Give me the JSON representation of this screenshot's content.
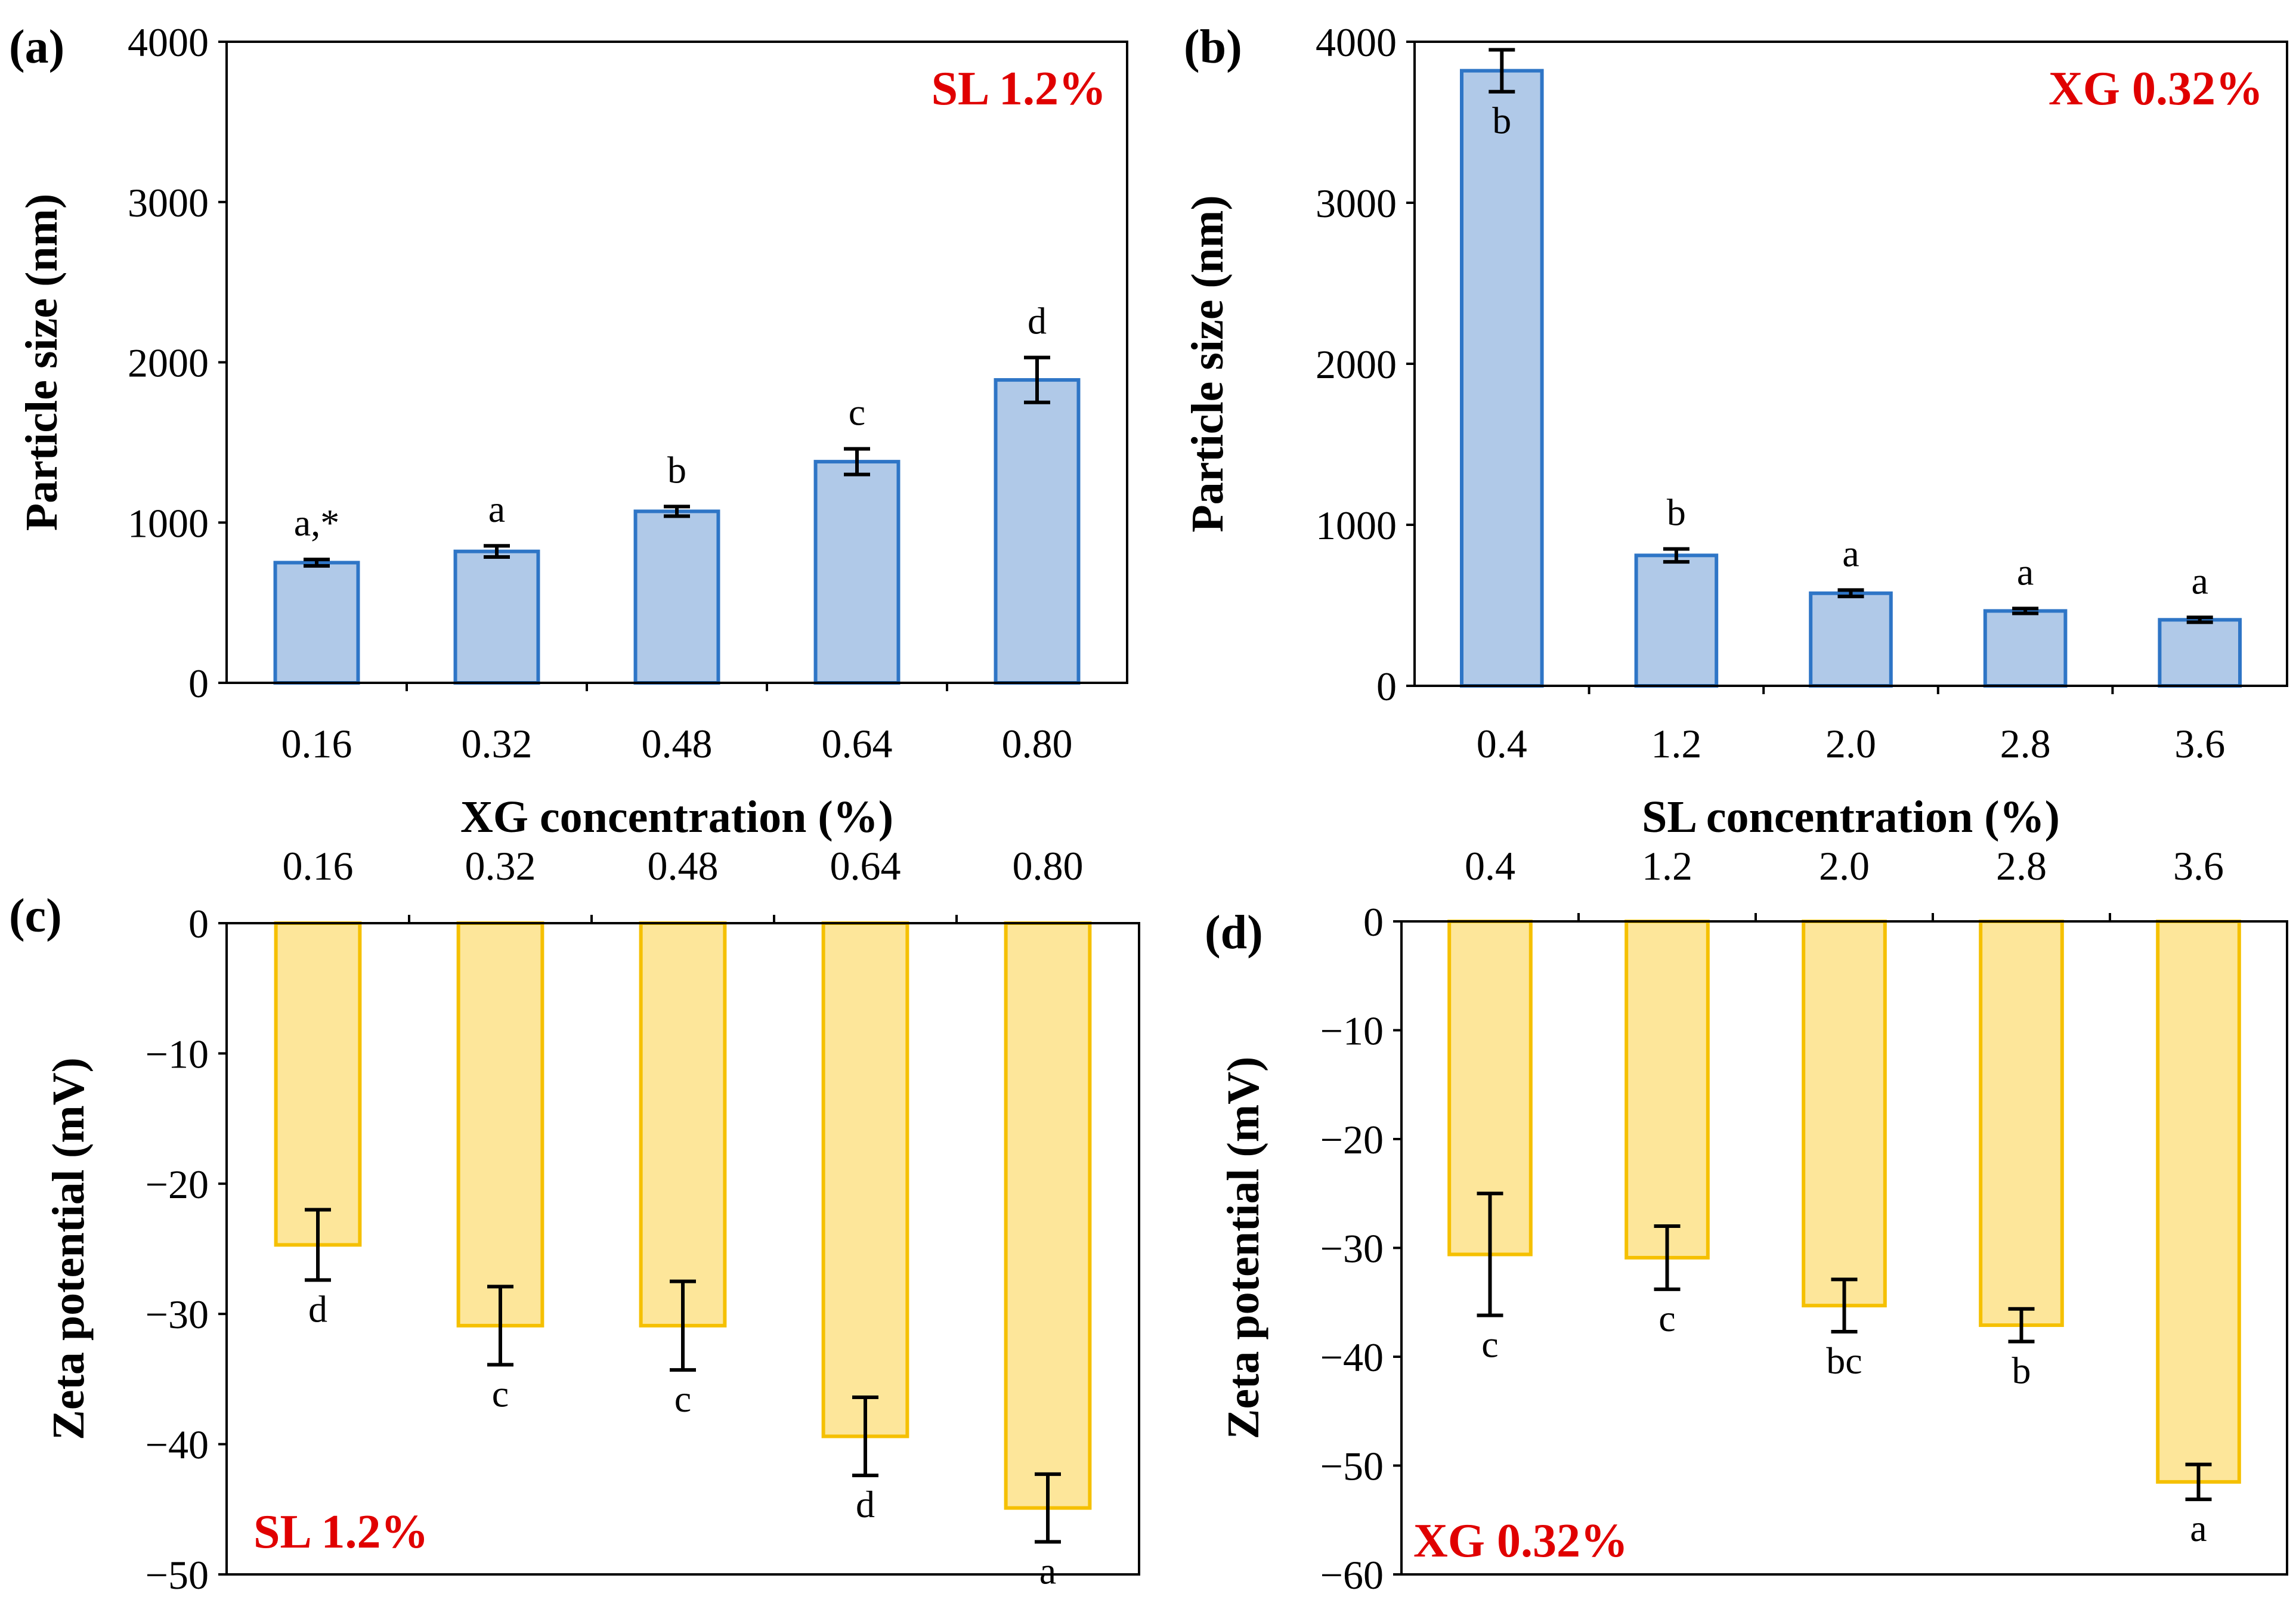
{
  "colors": {
    "size_fill": "#b0c9e8",
    "size_stroke": "#2e75c6",
    "zeta_fill": "#fde69a",
    "zeta_stroke": "#f5c000",
    "note": "#e00000"
  },
  "chart_data": [
    {
      "panel": "(a)",
      "type": "bar",
      "title": "",
      "note": "SL 1.2%",
      "xlabel": "XG concentration (%)",
      "ylabel": "Particle size (nm)",
      "categories": [
        "0.16",
        "0.32",
        "0.48",
        "0.64",
        "0.80"
      ],
      "values": [
        750,
        820,
        1070,
        1380,
        1890
      ],
      "errors": [
        20,
        35,
        30,
        80,
        140
      ],
      "letters": [
        "a,*",
        "a",
        "b",
        "c",
        "d"
      ],
      "ylim": [
        0,
        4000
      ],
      "yticks": [
        "0",
        "1000",
        "2000",
        "3000",
        "4000"
      ],
      "axis_position": "bottom"
    },
    {
      "panel": "(b)",
      "type": "bar",
      "title": "",
      "note": "XG 0.32%",
      "xlabel": "SL concentration (%)",
      "ylabel": "Particle size (nm)",
      "categories": [
        "0.4",
        "1.2",
        "2.0",
        "2.8",
        "3.6"
      ],
      "values": [
        3820,
        810,
        575,
        465,
        410
      ],
      "errors": [
        130,
        40,
        20,
        15,
        15
      ],
      "letters": [
        "b",
        "b",
        "a",
        "a",
        "a"
      ],
      "ylim": [
        0,
        4000
      ],
      "yticks": [
        "0",
        "1000",
        "2000",
        "3000",
        "4000"
      ],
      "axis_position": "bottom"
    },
    {
      "panel": "(c)",
      "type": "bar",
      "title": "",
      "note": "SL 1.2%",
      "xlabel": "",
      "ylabel": "Zeta potential (mV)",
      "categories": [
        "0.16",
        "0.32",
        "0.48",
        "0.64",
        "0.80"
      ],
      "values": [
        -24.7,
        -30.9,
        -30.9,
        -39.4,
        -44.9
      ],
      "errors": [
        2.7,
        3.0,
        3.4,
        3.0,
        2.6
      ],
      "letters": [
        "d",
        "c",
        "c",
        "d",
        "a"
      ],
      "ylim": [
        -50,
        0
      ],
      "yticks": [
        "0",
        "−10",
        "−20",
        "−30",
        "−40",
        "−50"
      ],
      "axis_position": "top"
    },
    {
      "panel": "(d)",
      "type": "bar",
      "title": "",
      "note": "XG 0.32%",
      "xlabel": "",
      "ylabel": "Zeta potential (mV)",
      "categories": [
        "0.4",
        "1.2",
        "2.0",
        "2.8",
        "3.6"
      ],
      "values": [
        -30.6,
        -30.9,
        -35.3,
        -37.1,
        -51.5
      ],
      "errors": [
        5.6,
        2.9,
        2.4,
        1.5,
        1.6
      ],
      "letters": [
        "c",
        "c",
        "bc",
        "b",
        "a"
      ],
      "ylim": [
        -60,
        0
      ],
      "yticks": [
        "0",
        "−10",
        "−20",
        "−30",
        "−40",
        "−50",
        "−60"
      ],
      "axis_position": "top"
    }
  ]
}
